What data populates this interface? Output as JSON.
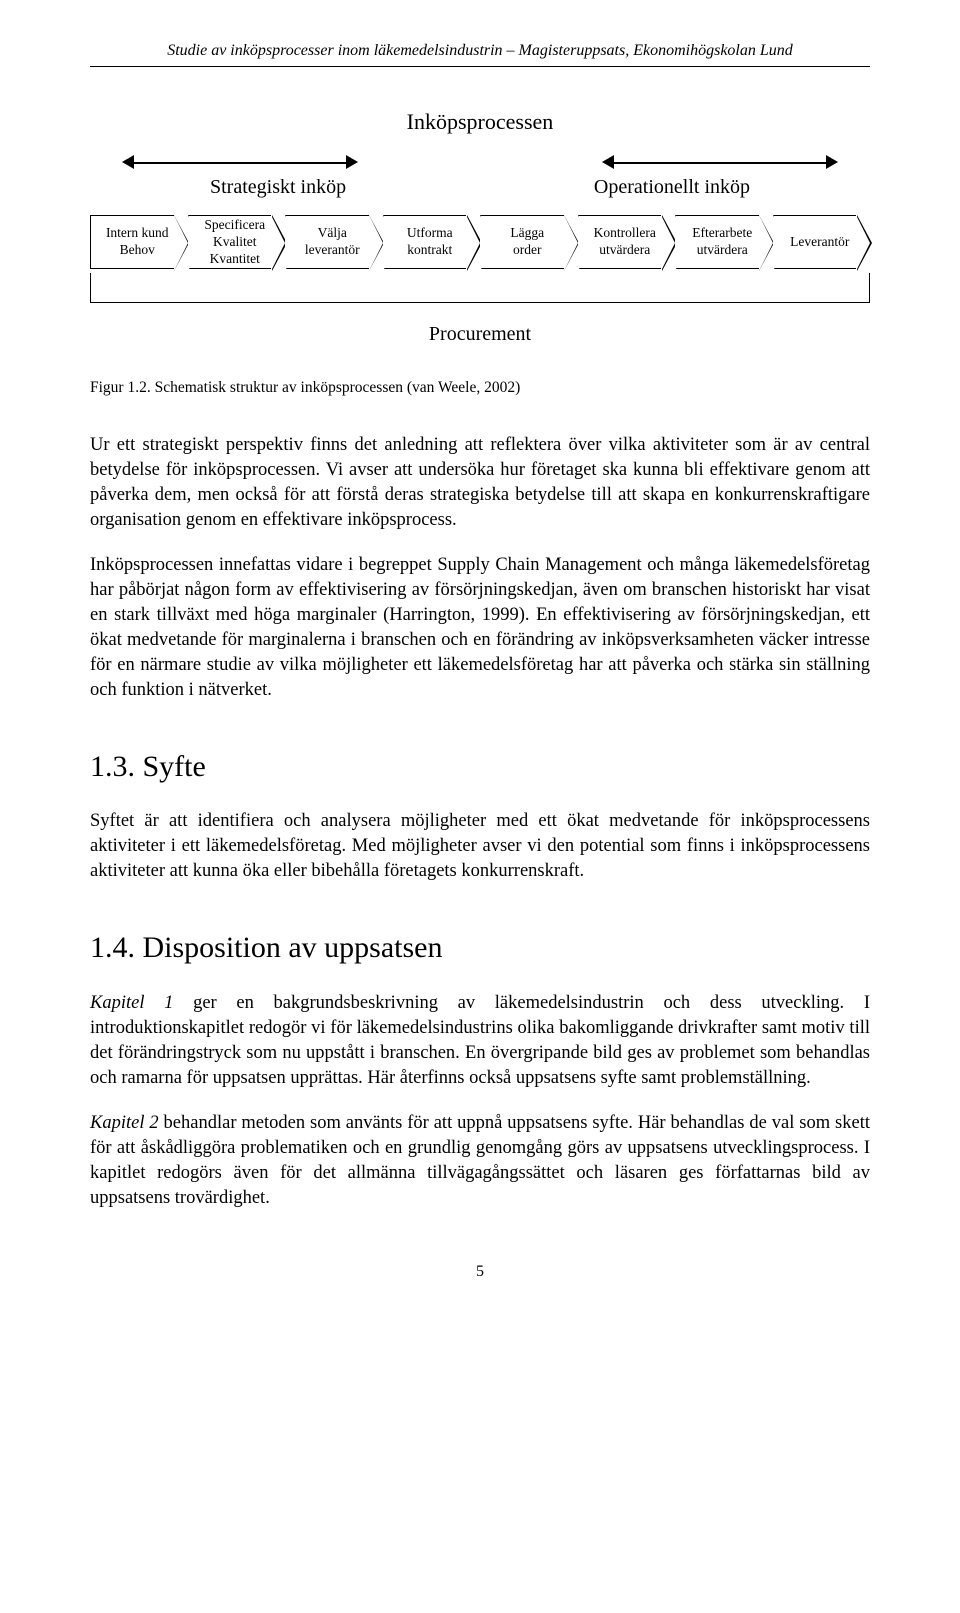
{
  "header": "Studie av inköpsprocesser inom läkemedelsindustrin – Magisteruppsats, Ekonomihögskolan Lund",
  "diagram": {
    "title": "Inköpsprocessen",
    "left_label": "Strategiskt inköp",
    "right_label": "Operationellt inköp",
    "steps": [
      {
        "l1": "Intern kund",
        "l2": "Behov"
      },
      {
        "l1": "Specificera",
        "l2": "Kvalitet",
        "l3": "Kvantitet"
      },
      {
        "l1": "Välja",
        "l2": "leverantör"
      },
      {
        "l1": "Utforma",
        "l2": "kontrakt"
      },
      {
        "l1": "Lägga",
        "l2": "order"
      },
      {
        "l1": "Kontrollera",
        "l2": "utvärdera"
      },
      {
        "l1": "Efterarbete",
        "l2": "utvärdera"
      },
      {
        "l1": "Leverantör",
        "l2": ""
      }
    ],
    "procurement": "Procurement",
    "caption": "Figur 1.2. Schematisk struktur av inköpsprocessen (van Weele, 2002)",
    "border_color": "#000000",
    "background": "#ffffff",
    "step_fontsize": 13.5,
    "title_fontsize": 22
  },
  "paragraphs": {
    "p1": "Ur ett strategiskt perspektiv finns det anledning att reflektera över vilka aktiviteter som är av central betydelse för inköpsprocessen. Vi avser att undersöka hur företaget ska kunna bli effektivare genom att påverka dem, men också för att förstå deras strategiska betydelse till att skapa en konkurrenskraftigare organisation genom en effektivare inköpsprocess.",
    "p2": "Inköpsprocessen innefattas vidare i begreppet Supply Chain Management och många läkemedelsföretag har påbörjat någon form av effektivisering av försörjningskedjan, även om branschen historiskt har visat en stark tillväxt med höga marginaler (Harrington, 1999). En effektivisering av försörjningskedjan, ett ökat medvetande för marginalerna i branschen och en förändring av inköpsverksamheten väcker intresse för en närmare studie av vilka möjligheter ett läkemedelsföretag har att påverka och stärka sin ställning och funktion i nätverket."
  },
  "sections": {
    "syfte": {
      "heading": "1.3. Syfte",
      "body": "Syftet är att identifiera och analysera möjligheter med ett ökat medvetande för inköpsprocessens aktiviteter i ett läkemedelsföretag. Med möjligheter avser vi den potential som finns i inköpsprocessens aktiviteter att kunna öka eller bibehålla företagets konkurrenskraft."
    },
    "disposition": {
      "heading": "1.4. Disposition av uppsatsen",
      "k1_lead": "Kapitel 1",
      "k1_rest": " ger en bakgrundsbeskrivning av läkemedelsindustrin och dess utveckling. I introduktionskapitlet redogör vi för läkemedelsindustrins olika bakomliggande drivkrafter samt motiv till det förändringstryck som nu uppstått i branschen. En övergripande bild ges av problemet som behandlas och ramarna för uppsatsen upprättas. Här återfinns också uppsatsens syfte samt problemställning.",
      "k2_lead": "Kapitel 2",
      "k2_rest": " behandlar metoden som använts för att uppnå uppsatsens syfte. Här behandlas de val som skett för att åskådliggöra problematiken och en grundlig genomgång görs av uppsatsens utvecklingsprocess. I kapitlet redogörs även för det allmänna tillvägagångssättet och läsaren ges författarnas bild av uppsatsens trovärdighet."
    }
  },
  "page_number": "5"
}
